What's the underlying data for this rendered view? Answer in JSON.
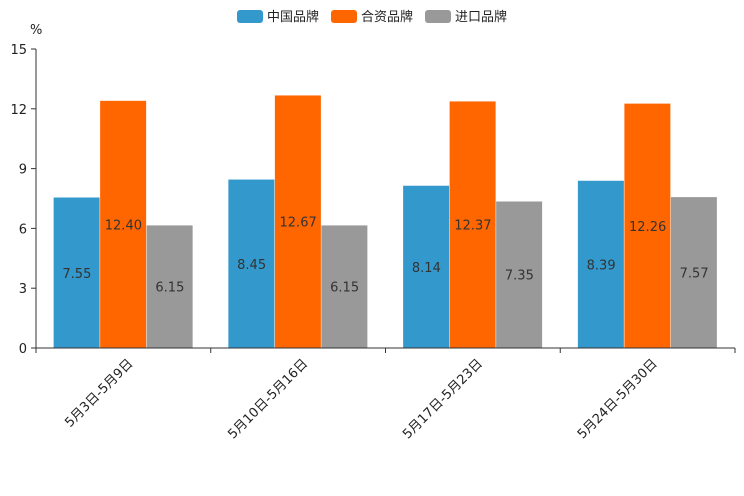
{
  "chart_data": {
    "type": "bar",
    "title": "",
    "xlabel": "",
    "ylabel": "%",
    "ylim": [
      0,
      15
    ],
    "yticks": [
      0,
      3,
      6,
      9,
      12,
      15
    ],
    "grid": false,
    "legend_position": "top-center",
    "categories": [
      "5月3日-5月9日",
      "5月10日-5月16日",
      "5月17日-5月23日",
      "5月24日-5月30日"
    ],
    "series": [
      {
        "name": "中国品牌",
        "color": "#3399CC",
        "values": [
          7.55,
          8.45,
          8.14,
          8.39
        ],
        "labels": [
          "7.55",
          "8.45",
          "8.14",
          "8.39"
        ]
      },
      {
        "name": "合资品牌",
        "color": "#FF6600",
        "values": [
          12.4,
          12.67,
          12.37,
          12.26
        ],
        "labels": [
          "12.40",
          "12.67",
          "12.37",
          "12.26"
        ]
      },
      {
        "name": "进口品牌",
        "color": "#999999",
        "values": [
          6.15,
          6.15,
          7.35,
          7.57
        ],
        "labels": [
          "6.15",
          "6.15",
          "7.35",
          "7.57"
        ]
      }
    ]
  }
}
